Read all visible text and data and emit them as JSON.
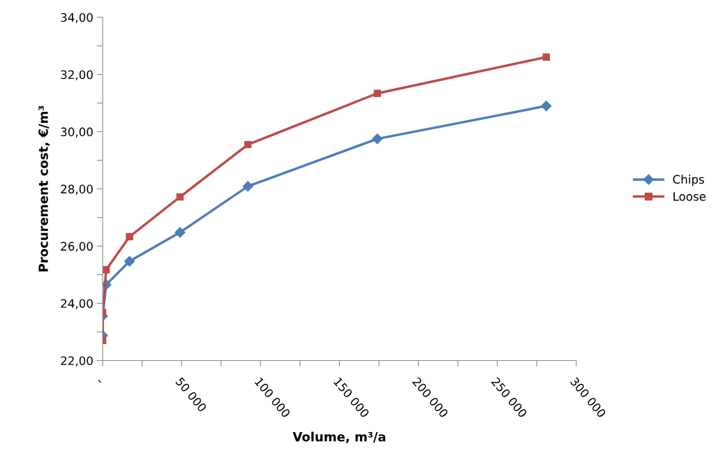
{
  "chart_data": {
    "type": "line",
    "xlabel": "Volume, m³/a",
    "ylabel": "Procurement cost, €/m³",
    "xlim": [
      0,
      300000
    ],
    "ylim": [
      22,
      34
    ],
    "xticks": [
      {
        "value": 0,
        "label": "-"
      },
      {
        "value": 25000,
        "label": null
      },
      {
        "value": 50000,
        "label": "50 000"
      },
      {
        "value": 75000,
        "label": null
      },
      {
        "value": 100000,
        "label": "100 000"
      },
      {
        "value": 125000,
        "label": null
      },
      {
        "value": 150000,
        "label": "150 000"
      },
      {
        "value": 175000,
        "label": null
      },
      {
        "value": 200000,
        "label": "200 000"
      },
      {
        "value": 225000,
        "label": null
      },
      {
        "value": 250000,
        "label": "250 000"
      },
      {
        "value": 275000,
        "label": null
      },
      {
        "value": 300000,
        "label": "300 000"
      }
    ],
    "yticks": [
      {
        "value": 22,
        "label": "22,00"
      },
      {
        "value": 23,
        "label": null
      },
      {
        "value": 24,
        "label": "24,00"
      },
      {
        "value": 25,
        "label": null
      },
      {
        "value": 26,
        "label": "26,00"
      },
      {
        "value": 27,
        "label": null
      },
      {
        "value": 28,
        "label": "28,00"
      },
      {
        "value": 29,
        "label": null
      },
      {
        "value": 30,
        "label": "30,00"
      },
      {
        "value": 31,
        "label": null
      },
      {
        "value": 32,
        "label": "32,00"
      },
      {
        "value": 33,
        "label": null
      },
      {
        "value": 34,
        "label": "34,00"
      }
    ],
    "grid": false,
    "legend": "right",
    "line_style": "solid",
    "series": [
      {
        "name": "Chips",
        "color": "#4a7ebb",
        "marker": "diamond",
        "x": [
          0,
          0,
          2200,
          17000,
          49000,
          92000,
          174000,
          281000
        ],
        "values": [
          22.88,
          23.55,
          24.65,
          25.47,
          26.48,
          28.09,
          29.75,
          30.9
        ]
      },
      {
        "name": "Loose",
        "color": "#be4b48",
        "marker": "square",
        "x": [
          0,
          0,
          2200,
          17000,
          49000,
          92000,
          174000,
          281000
        ],
        "values": [
          22.7,
          23.68,
          25.17,
          26.33,
          27.72,
          29.55,
          31.34,
          32.61
        ]
      }
    ]
  }
}
